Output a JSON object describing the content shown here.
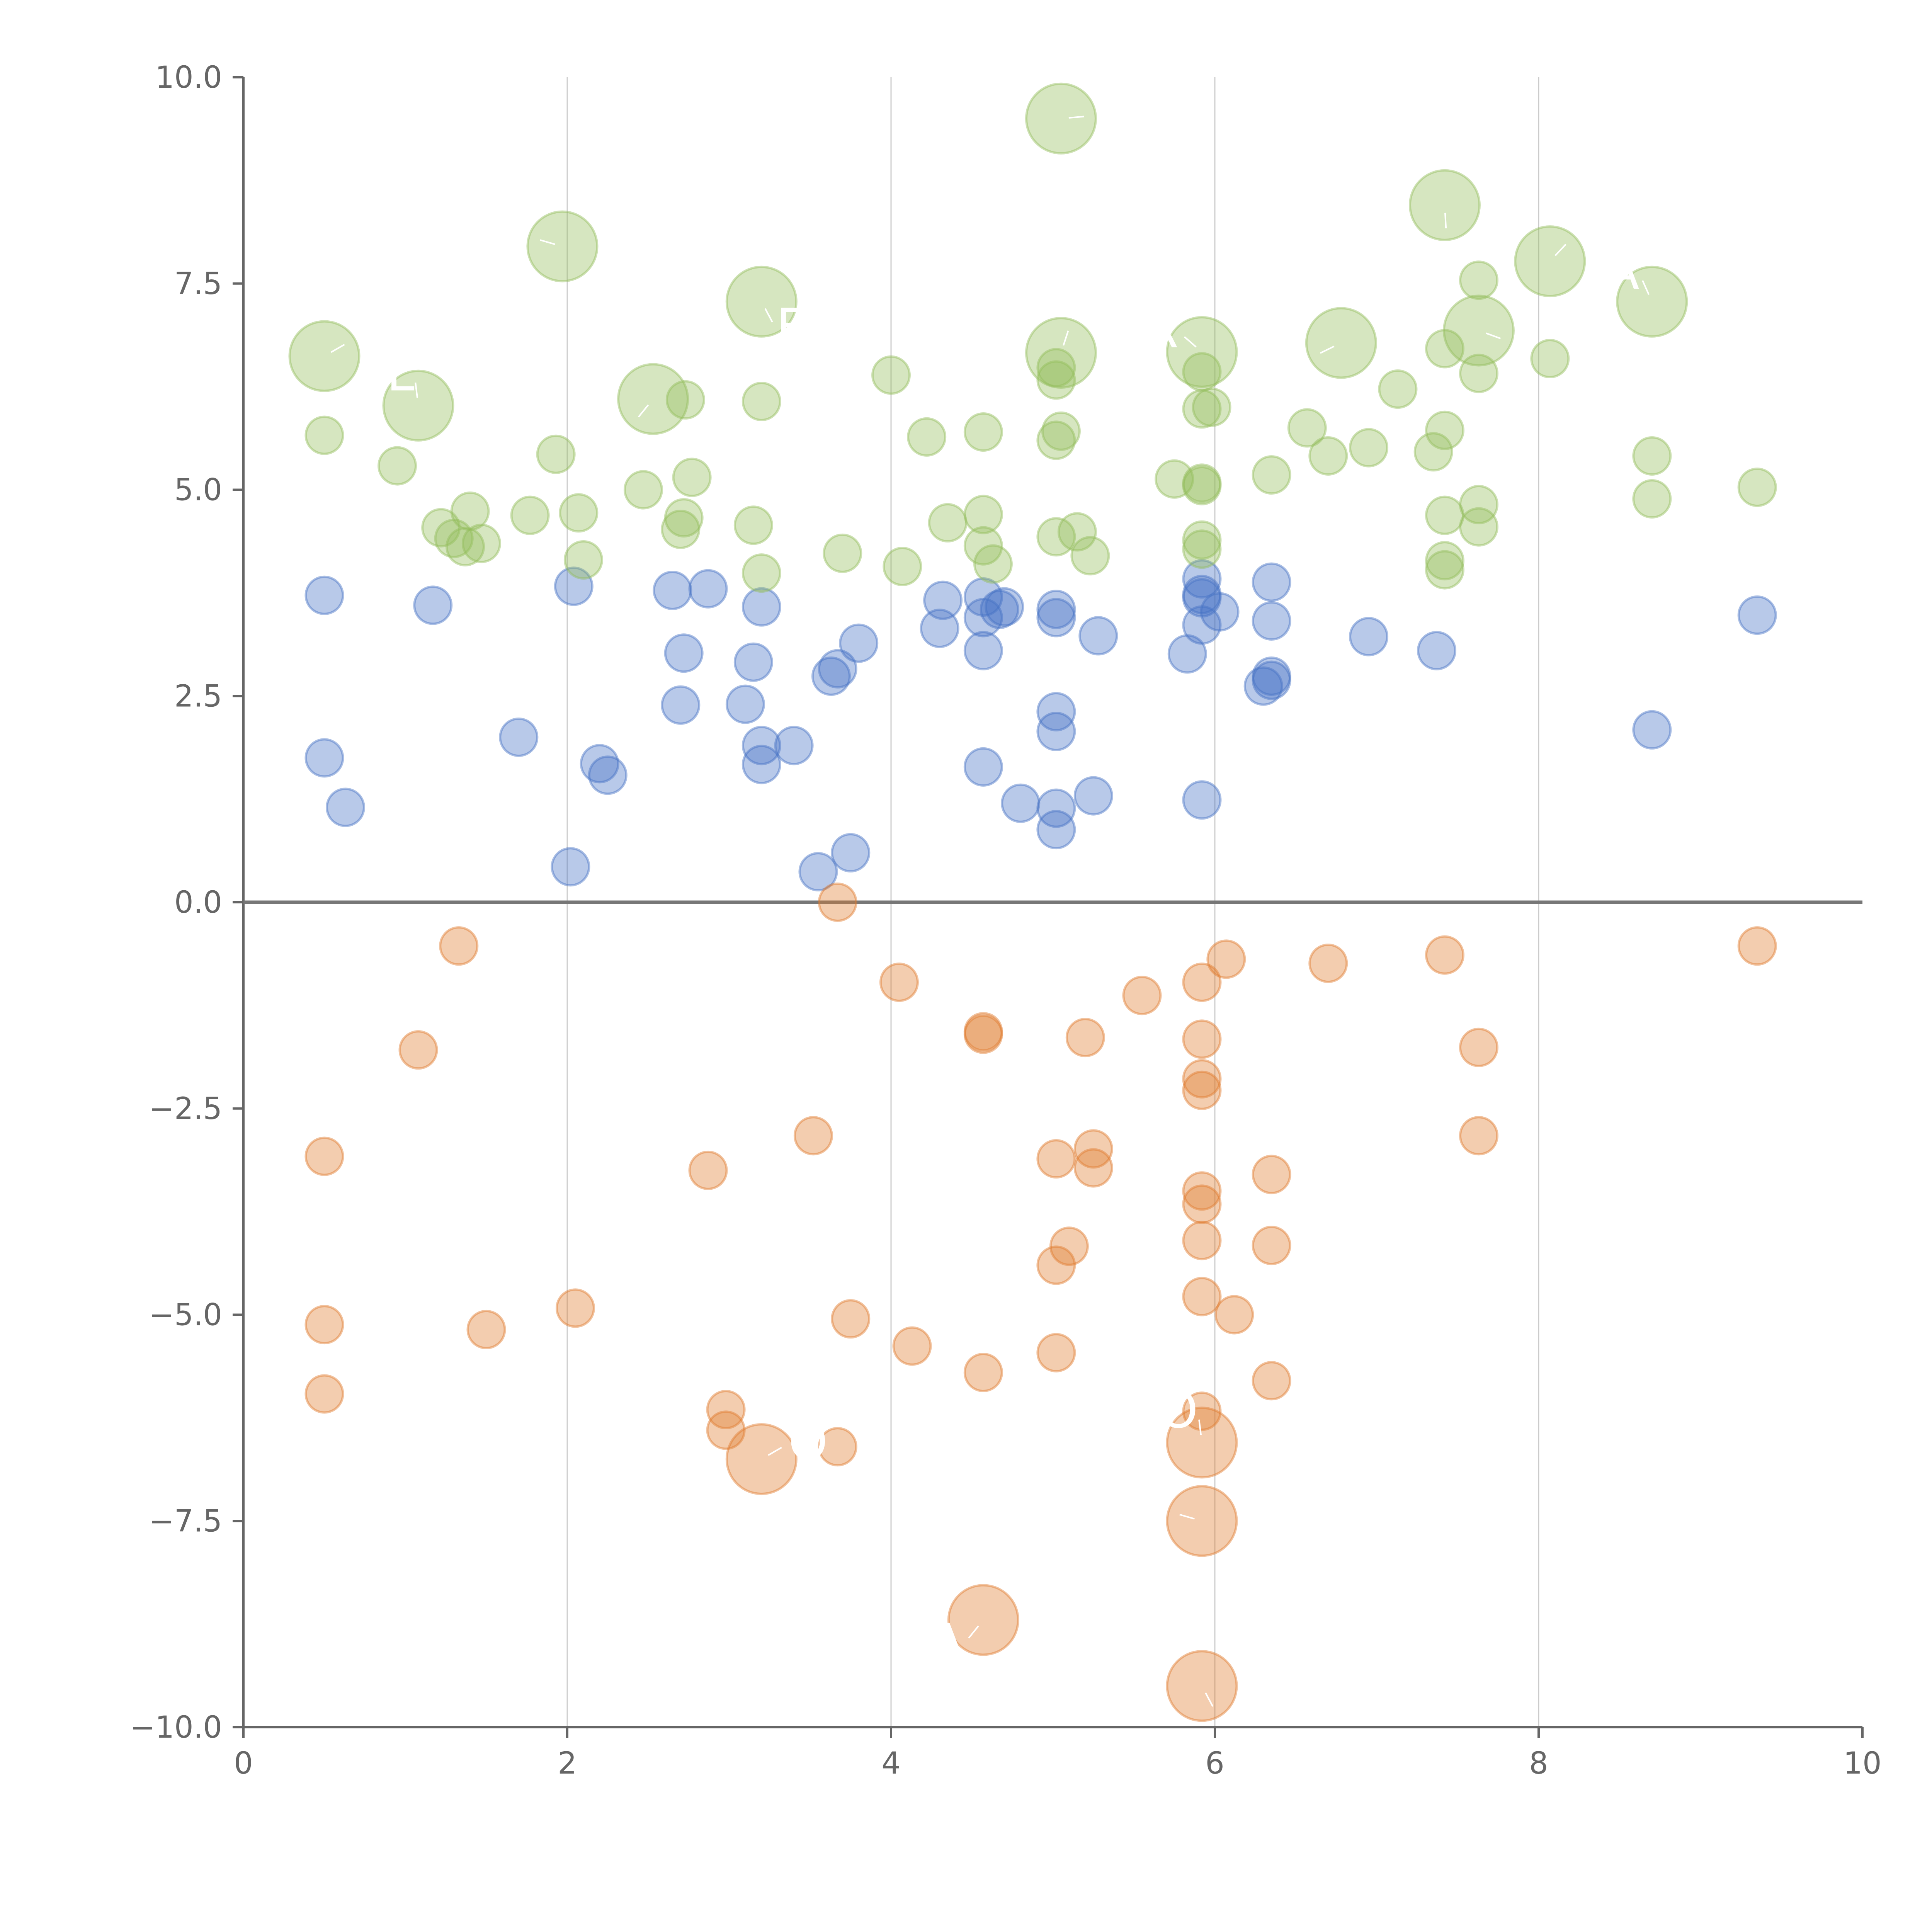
{
  "chart_data": {
    "type": "scatter",
    "title": "",
    "xlabel": "",
    "ylabel": "",
    "xlim": [
      0,
      10
    ],
    "ylim": [
      -10,
      10
    ],
    "x_ticks": [
      0,
      2,
      4,
      6,
      8,
      10
    ],
    "x_tick_labels": [
      "0",
      "2",
      "4",
      "6",
      "8",
      "10"
    ],
    "y_ticks": [
      10,
      7.5,
      5,
      2.5,
      0,
      -2.5,
      -5,
      -7.5,
      -10
    ],
    "y_tick_labels": [
      "10.0",
      "7.5",
      "5.0",
      "2.5",
      "0.0",
      "−2.5",
      "−5.0",
      "−7.5",
      "−10.0"
    ],
    "vertical_grid_x": [
      2,
      4,
      6,
      8
    ],
    "reference_line_y": 0,
    "series": [
      {
        "name": "blue",
        "color": "#4472c4",
        "points": [
          [
            0.5,
            3.72
          ],
          [
            0.5,
            1.75
          ],
          [
            0.63,
            1.15
          ],
          [
            1.17,
            3.6
          ],
          [
            1.7,
            2.0
          ],
          [
            2.02,
            0.43
          ],
          [
            2.04,
            3.83
          ],
          [
            2.2,
            1.68
          ],
          [
            2.25,
            1.54
          ],
          [
            2.65,
            3.78
          ],
          [
            2.7,
            2.39
          ],
          [
            2.72,
            3.02
          ],
          [
            2.87,
            3.8
          ],
          [
            3.1,
            2.4
          ],
          [
            3.15,
            2.91
          ],
          [
            3.2,
            1.9
          ],
          [
            3.2,
            1.67
          ],
          [
            3.2,
            3.58
          ],
          [
            3.4,
            1.9
          ],
          [
            3.55,
            0.37
          ],
          [
            3.63,
            2.74
          ],
          [
            3.67,
            2.83
          ],
          [
            3.75,
            0.6
          ],
          [
            3.8,
            3.14
          ],
          [
            4.3,
            3.32
          ],
          [
            4.32,
            3.66
          ],
          [
            4.57,
            3.7
          ],
          [
            4.57,
            3.45
          ],
          [
            4.57,
            3.05
          ],
          [
            4.57,
            1.64
          ],
          [
            4.67,
            3.55
          ],
          [
            4.7,
            3.58
          ],
          [
            4.8,
            1.2
          ],
          [
            5.02,
            3.55
          ],
          [
            5.02,
            3.45
          ],
          [
            5.02,
            2.31
          ],
          [
            5.02,
            2.07
          ],
          [
            5.02,
            1.14
          ],
          [
            5.02,
            0.88
          ],
          [
            5.25,
            1.29
          ],
          [
            5.28,
            3.23
          ],
          [
            5.83,
            3.01
          ],
          [
            5.92,
            3.92
          ],
          [
            5.92,
            3.73
          ],
          [
            5.92,
            3.69
          ],
          [
            5.92,
            3.36
          ],
          [
            5.92,
            1.24
          ],
          [
            6.03,
            3.52
          ],
          [
            6.35,
            3.88
          ],
          [
            6.35,
            3.41
          ],
          [
            6.35,
            2.74
          ],
          [
            6.35,
            2.69
          ],
          [
            6.3,
            2.62
          ],
          [
            6.95,
            3.22
          ],
          [
            7.37,
            3.05
          ],
          [
            8.7,
            2.09
          ],
          [
            9.35,
            3.48
          ]
        ],
        "labels": []
      },
      {
        "name": "orange",
        "color": "#e07b2c",
        "points": [
          [
            0.5,
            -3.08
          ],
          [
            0.5,
            -5.12
          ],
          [
            0.5,
            -5.96
          ],
          [
            1.08,
            -1.79
          ],
          [
            1.33,
            -0.53
          ],
          [
            1.5,
            -5.18
          ],
          [
            2.05,
            -4.92
          ],
          [
            2.87,
            -3.25
          ],
          [
            2.98,
            -6.15
          ],
          [
            2.98,
            -6.4
          ],
          [
            3.52,
            -2.83
          ],
          [
            3.67,
            -6.6
          ],
          [
            3.67,
            0.0
          ],
          [
            3.75,
            -5.05
          ],
          [
            4.05,
            -0.97
          ],
          [
            4.13,
            -5.38
          ],
          [
            4.57,
            -1.57
          ],
          [
            4.57,
            -1.6
          ],
          [
            4.57,
            -5.7
          ],
          [
            5.02,
            -3.11
          ],
          [
            5.02,
            -4.4
          ],
          [
            5.02,
            -5.46
          ],
          [
            5.1,
            -4.17
          ],
          [
            5.2,
            -1.64
          ],
          [
            5.25,
            -2.99
          ],
          [
            5.25,
            -3.22
          ],
          [
            5.55,
            -1.13
          ],
          [
            5.92,
            -0.97
          ],
          [
            5.92,
            -1.66
          ],
          [
            5.92,
            -2.14
          ],
          [
            5.92,
            -2.28
          ],
          [
            5.92,
            -3.5
          ],
          [
            5.92,
            -3.66
          ],
          [
            5.92,
            -4.1
          ],
          [
            5.92,
            -4.78
          ],
          [
            5.92,
            -6.17
          ],
          [
            6.07,
            -0.69
          ],
          [
            6.12,
            -5.0
          ],
          [
            6.35,
            -3.3
          ],
          [
            6.35,
            -4.16
          ],
          [
            6.35,
            -5.8
          ],
          [
            6.7,
            -0.74
          ],
          [
            7.42,
            -0.64
          ],
          [
            7.63,
            -1.76
          ],
          [
            7.63,
            -2.83
          ],
          [
            9.35,
            -0.53
          ]
        ],
        "labels": [
          {
            "x": 3.2,
            "y": -6.75,
            "text": "O"
          },
          {
            "x": 5.92,
            "y": -6.55,
            "text": "KO"
          },
          {
            "x": 5.92,
            "y": -7.5,
            "text": ""
          },
          {
            "x": 4.57,
            "y": -8.7,
            "text": "A"
          },
          {
            "x": 5.92,
            "y": -9.5,
            "text": ""
          }
        ]
      },
      {
        "name": "green",
        "color": "#92bc5a",
        "points": [
          [
            0.5,
            5.66
          ],
          [
            0.95,
            5.29
          ],
          [
            1.22,
            4.54
          ],
          [
            1.3,
            4.41
          ],
          [
            1.37,
            4.31
          ],
          [
            1.4,
            4.74
          ],
          [
            1.47,
            4.35
          ],
          [
            1.77,
            4.69
          ],
          [
            1.93,
            5.43
          ],
          [
            2.07,
            4.72
          ],
          [
            2.1,
            4.15
          ],
          [
            2.47,
            5.0
          ],
          [
            2.7,
            4.52
          ],
          [
            2.72,
            4.66
          ],
          [
            2.73,
            6.09
          ],
          [
            2.77,
            5.15
          ],
          [
            3.15,
            4.57
          ],
          [
            3.2,
            6.07
          ],
          [
            3.2,
            3.99
          ],
          [
            3.7,
            4.23
          ],
          [
            4.0,
            6.39
          ],
          [
            4.07,
            4.07
          ],
          [
            4.22,
            5.64
          ],
          [
            4.35,
            4.6
          ],
          [
            4.57,
            5.7
          ],
          [
            4.57,
            4.7
          ],
          [
            4.57,
            4.32
          ],
          [
            4.63,
            4.1
          ],
          [
            5.02,
            4.43
          ],
          [
            5.02,
            5.6
          ],
          [
            5.02,
            6.33
          ],
          [
            5.02,
            6.48
          ],
          [
            5.05,
            5.71
          ],
          [
            5.15,
            4.49
          ],
          [
            5.23,
            4.2
          ],
          [
            5.75,
            5.13
          ],
          [
            5.92,
            6.43
          ],
          [
            5.92,
            5.98
          ],
          [
            5.92,
            5.05
          ],
          [
            5.92,
            5.08
          ],
          [
            5.92,
            4.39
          ],
          [
            5.92,
            4.28
          ],
          [
            5.98,
            6.0
          ],
          [
            6.35,
            5.18
          ],
          [
            6.57,
            5.75
          ],
          [
            6.7,
            5.41
          ],
          [
            6.95,
            5.51
          ],
          [
            7.13,
            6.22
          ],
          [
            7.35,
            5.46
          ],
          [
            7.42,
            6.71
          ],
          [
            7.42,
            5.72
          ],
          [
            7.42,
            4.69
          ],
          [
            7.42,
            4.14
          ],
          [
            7.42,
            4.03
          ],
          [
            7.63,
            7.54
          ],
          [
            7.63,
            6.41
          ],
          [
            7.63,
            4.82
          ],
          [
            7.63,
            4.55
          ],
          [
            8.07,
            6.59
          ],
          [
            8.7,
            5.41
          ],
          [
            8.7,
            4.89
          ],
          [
            9.35,
            5.03
          ]
        ],
        "labels": [
          {
            "x": 0.5,
            "y": 6.62,
            "text": ""
          },
          {
            "x": 1.08,
            "y": 6.02,
            "text": "L"
          },
          {
            "x": 1.97,
            "y": 7.95,
            "text": ""
          },
          {
            "x": 2.53,
            "y": 6.1,
            "text": ""
          },
          {
            "x": 3.2,
            "y": 7.28,
            "text": "EN"
          },
          {
            "x": 5.05,
            "y": 9.5,
            "text": ""
          },
          {
            "x": 5.05,
            "y": 6.66,
            "text": ""
          },
          {
            "x": 5.92,
            "y": 6.67,
            "text": "R"
          },
          {
            "x": 6.78,
            "y": 6.78,
            "text": "A"
          },
          {
            "x": 7.42,
            "y": 8.45,
            "text": ""
          },
          {
            "x": 7.63,
            "y": 6.93,
            "text": ""
          },
          {
            "x": 8.07,
            "y": 7.77,
            "text": ""
          },
          {
            "x": 8.7,
            "y": 7.28,
            "text": "A"
          }
        ]
      }
    ]
  }
}
